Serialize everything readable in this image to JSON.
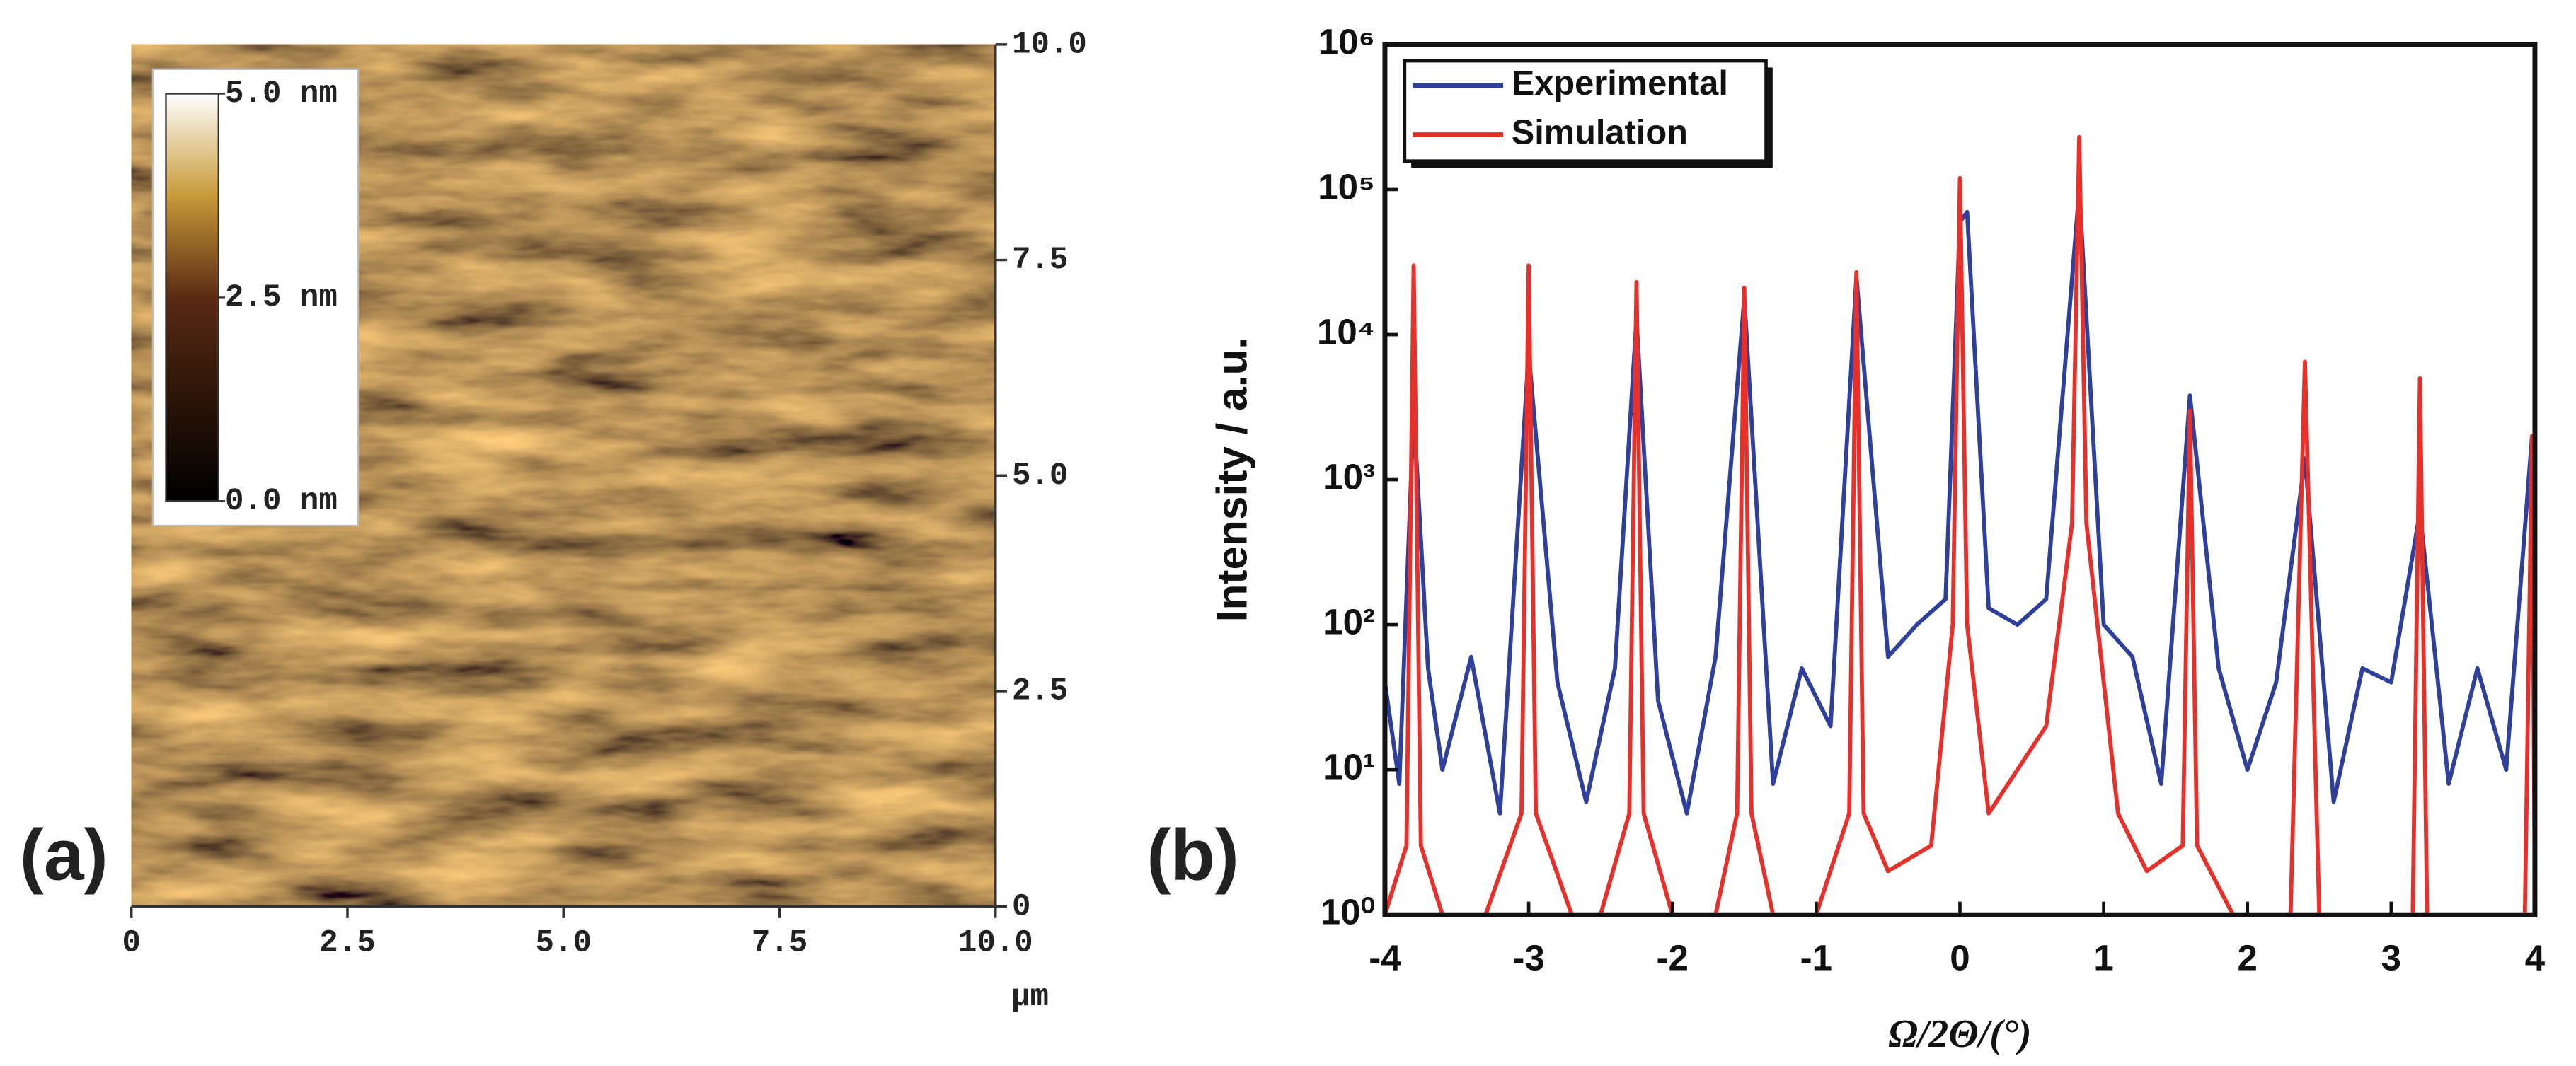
{
  "chart_data": [
    {
      "type": "image",
      "panel_label": "(a)",
      "x_unit": "μm",
      "xlim": [
        0,
        10
      ],
      "ylim": [
        0,
        10
      ],
      "xticks": [
        0,
        2.5,
        {
          "value": 5,
          "label": "5.0"
        },
        7.5,
        {
          "value": 10,
          "label": "10.0"
        }
      ],
      "yticks": [
        0,
        2.5,
        {
          "value": 5,
          "label": "5.0"
        },
        7.5,
        {
          "value": 10,
          "label": "10.0"
        }
      ],
      "colorbar": {
        "lim": [
          0,
          5
        ],
        "ticks": [
          {
            "value": 0,
            "label": "0.0 nm"
          },
          {
            "value": 2.5,
            "label": "2.5 nm"
          },
          {
            "value": 5,
            "label": "5.0 nm"
          }
        ]
      }
    },
    {
      "type": "line",
      "panel_label": "(b)",
      "x_label": "Ω/2Θ/(°)",
      "y_label": "Intensity / a.u.",
      "yscale": "log",
      "legend": "upper left",
      "xlim": [
        -4,
        4
      ],
      "ylim": [
        1,
        1000000
      ],
      "xticks": [
        -4,
        -3,
        -2,
        -1,
        0,
        1,
        2,
        3,
        4
      ],
      "yticks": [
        {
          "value": 1,
          "label": "10⁰"
        },
        {
          "value": 10,
          "label": "10¹"
        },
        {
          "value": 100,
          "label": "10²"
        },
        {
          "value": 1000,
          "label": "10³"
        },
        {
          "value": 10000,
          "label": "10⁴"
        },
        {
          "value": 100000,
          "label": "10⁵"
        },
        {
          "value": 1000000,
          "label": "10⁶"
        }
      ],
      "series": [
        {
          "name": "Experimental",
          "color": "#2e3f9c",
          "x": [
            -4,
            -3.9,
            -3.8,
            -3.7,
            -3.6,
            -3.4,
            -3.2,
            -3.0,
            -2.8,
            -2.6,
            -2.4,
            -2.25,
            -2.1,
            -1.9,
            -1.7,
            -1.5,
            -1.3,
            -1.1,
            -0.9,
            -0.72,
            -0.5,
            -0.3,
            -0.1,
            0,
            0.05,
            0.2,
            0.4,
            0.6,
            0.83,
            1.0,
            1.2,
            1.4,
            1.6,
            1.8,
            2.0,
            2.2,
            2.4,
            2.6,
            2.8,
            3.0,
            3.2,
            3.4,
            3.6,
            3.8,
            3.98
          ],
          "values": [
            40,
            8,
            3000,
            50,
            10,
            60,
            5,
            7500,
            40,
            6,
            50,
            13000,
            30,
            5,
            60,
            18000,
            8,
            50,
            20,
            25000,
            60,
            100,
            150,
            60000,
            70000,
            130,
            100,
            150,
            100000,
            100,
            60,
            8,
            3800,
            50,
            10,
            40,
            1400,
            6,
            50,
            40,
            600,
            8,
            50,
            10,
            2000
          ]
        },
        {
          "name": "Simulation",
          "color": "#e8302a",
          "x": [
            -4,
            -3.85,
            -3.8,
            -3.75,
            -3.6,
            -3.3,
            -3.05,
            -3.0,
            -2.95,
            -2.7,
            -2.5,
            -2.3,
            -2.25,
            -2.2,
            -2.0,
            -1.7,
            -1.55,
            -1.5,
            -1.45,
            -1.3,
            -1.0,
            -0.77,
            -0.72,
            -0.67,
            -0.5,
            -0.2,
            -0.05,
            0,
            0.05,
            0.2,
            0.4,
            0.6,
            0.78,
            0.83,
            0.88,
            1.1,
            1.3,
            1.55,
            1.6,
            1.65,
            1.9,
            2.3,
            2.4,
            2.5,
            2.9,
            3.15,
            3.2,
            3.25,
            3.6,
            3.93,
            3.98,
            4
          ],
          "values": [
            1,
            3,
            30000,
            3,
            1,
            1,
            5,
            30000,
            5,
            1,
            1,
            5,
            23000,
            5,
            1,
            1,
            5,
            21000,
            5,
            1,
            1,
            5,
            27000,
            5,
            2,
            3,
            100,
            120000,
            100,
            5,
            10,
            20,
            500,
            230000,
            500,
            5,
            2,
            3,
            3000,
            3,
            1,
            1,
            6500,
            1,
            1,
            1,
            5000,
            1,
            1,
            1,
            2000,
            1
          ]
        }
      ]
    }
  ]
}
